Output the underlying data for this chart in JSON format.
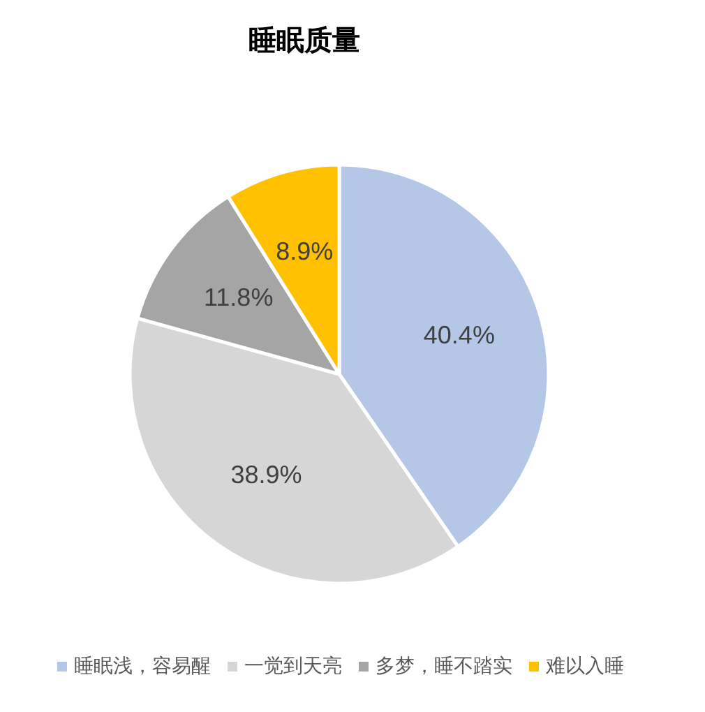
{
  "chart_data": {
    "type": "pie",
    "title": "睡眠质量",
    "categories": [
      "睡眠浅，容易醒",
      "一觉到天亮",
      "多梦，睡不踏实",
      "难以入睡"
    ],
    "values": [
      40.4,
      38.9,
      11.8,
      8.9
    ],
    "colors": [
      "#b4c7e7",
      "#d6d6d6",
      "#a5a5a5",
      "#ffc000"
    ],
    "value_labels": [
      "40.4%",
      "38.9%",
      "11.8%",
      "8.9%"
    ],
    "legend": "bottom"
  }
}
